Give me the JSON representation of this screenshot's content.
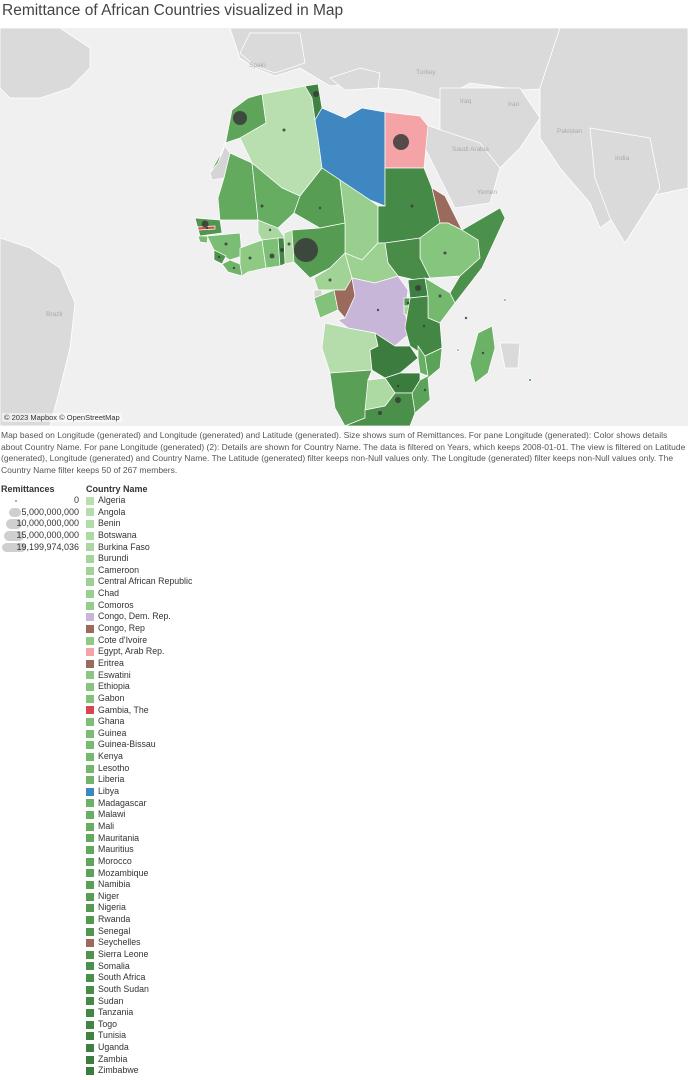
{
  "title": "Remittance of African Countries visualized in Map",
  "map": {
    "attribution": "© 2023 Mapbox © OpenStreetMap",
    "basemap_labels": [
      "Spain",
      "Turkey",
      "Iraq",
      "Iran",
      "Saudi Arabia",
      "Yemen",
      "Pakistan",
      "India",
      "Brazil"
    ]
  },
  "caption": "Map based on Longitude (generated) and Longitude (generated) and Latitude (generated).  Size shows sum of Remittances.  For pane Longitude (generated):  Color shows details about Country Name.  For pane Longitude (generated) (2):  Details are shown for Country Name. The data is filtered on Years, which keeps 2008-01-01. The view is filtered on Latitude (generated), Longitude (generated) and Country Name. The Latitude (generated) filter keeps non-Null values only. The Longitude (generated) filter keeps non-Null values only. The Country Name filter keeps 50 of 267 members.",
  "size_legend": {
    "title": "Remittances",
    "items": [
      {
        "label": "0",
        "value": 0
      },
      {
        "label": "5,000,000,000",
        "value": 5000000000
      },
      {
        "label": "10,000,000,000",
        "value": 10000000000
      },
      {
        "label": "15,000,000,000",
        "value": 15000000000
      },
      {
        "label": "19,199,974,036",
        "value": 19199974036
      }
    ]
  },
  "color_legend": {
    "title": "Country Name",
    "items": [
      {
        "name": "Algeria",
        "color": "#b9dfb0"
      },
      {
        "name": "Angola",
        "color": "#b5ddab"
      },
      {
        "name": "Benin",
        "color": "#b1dba7"
      },
      {
        "name": "Botswana",
        "color": "#add9a3"
      },
      {
        "name": "Burkina Faso",
        "color": "#a9d79f"
      },
      {
        "name": "Burundi",
        "color": "#a5d59a"
      },
      {
        "name": "Cameroon",
        "color": "#a1d396"
      },
      {
        "name": "Central African Republic",
        "color": "#9dd192"
      },
      {
        "name": "Chad",
        "color": "#99cf8e"
      },
      {
        "name": "Comoros",
        "color": "#95cd8a"
      },
      {
        "name": "Congo, Dem. Rep.",
        "color": "#c8b6d8"
      },
      {
        "name": "Congo, Rep",
        "color": "#9a6a5c"
      },
      {
        "name": "Cote d'Ivoire",
        "color": "#8fca85"
      },
      {
        "name": "Egypt, Arab Rep.",
        "color": "#f4a3a6"
      },
      {
        "name": "Eritrea",
        "color": "#9a6a5c"
      },
      {
        "name": "Eswatini",
        "color": "#8ac782"
      },
      {
        "name": "Ethiopia",
        "color": "#86c57e"
      },
      {
        "name": "Gabon",
        "color": "#82c27a"
      },
      {
        "name": "Gambia, The",
        "color": "#d44a4c"
      },
      {
        "name": "Ghana",
        "color": "#7ebf77"
      },
      {
        "name": "Guinea",
        "color": "#7bbd74"
      },
      {
        "name": "Guinea-Bissau",
        "color": "#78bb71"
      },
      {
        "name": "Kenya",
        "color": "#75b96e"
      },
      {
        "name": "Lesotho",
        "color": "#72b76b"
      },
      {
        "name": "Liberia",
        "color": "#6fb468"
      },
      {
        "name": "Libya",
        "color": "#3f87c0"
      },
      {
        "name": "Madagascar",
        "color": "#6cb266"
      },
      {
        "name": "Malawi",
        "color": "#69af63"
      },
      {
        "name": "Mali",
        "color": "#66ad61"
      },
      {
        "name": "Mauritania",
        "color": "#63aa5e"
      },
      {
        "name": "Mauritius",
        "color": "#60a85c"
      },
      {
        "name": "Morocco",
        "color": "#5ea55a"
      },
      {
        "name": "Mozambique",
        "color": "#5ba358"
      },
      {
        "name": "Namibia",
        "color": "#59a056"
      },
      {
        "name": "Niger",
        "color": "#579e54"
      },
      {
        "name": "Nigeria",
        "color": "#559b52"
      },
      {
        "name": "Rwanda",
        "color": "#529950"
      },
      {
        "name": "Senegal",
        "color": "#50964f"
      },
      {
        "name": "Seychelles",
        "color": "#9a6a5c"
      },
      {
        "name": "Sierra Leone",
        "color": "#4e944d"
      },
      {
        "name": "Somalia",
        "color": "#4c914b"
      },
      {
        "name": "South Africa",
        "color": "#4a8f4a"
      },
      {
        "name": "South Sudan",
        "color": "#488c48"
      },
      {
        "name": "Sudan",
        "color": "#468a47"
      },
      {
        "name": "Tanzania",
        "color": "#448745"
      },
      {
        "name": "Togo",
        "color": "#428544"
      },
      {
        "name": "Tunisia",
        "color": "#408242"
      },
      {
        "name": "Uganda",
        "color": "#3e8041"
      },
      {
        "name": "Zambia",
        "color": "#3c7d3f"
      },
      {
        "name": "Zimbabwe",
        "color": "#3a7b3e"
      }
    ]
  }
}
